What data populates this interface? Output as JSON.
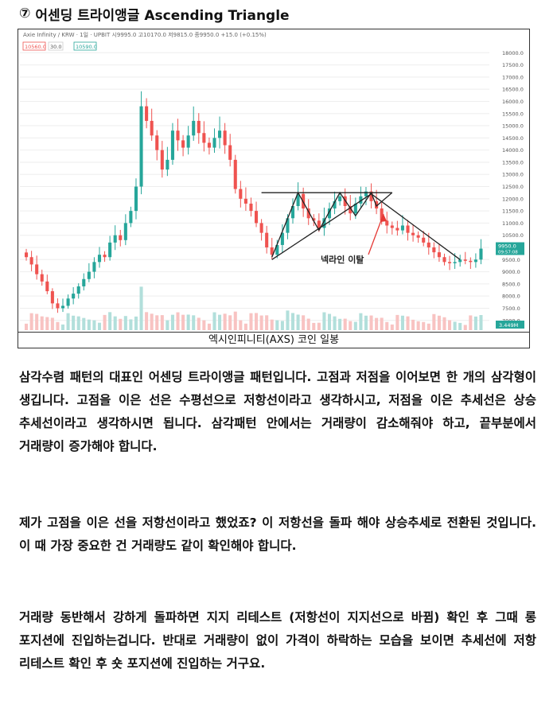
{
  "title": {
    "number_symbol": "⑦",
    "text": "어센딩 트라이앵글 Ascending Triangle"
  },
  "figure": {
    "caption": "엑시인피니티(AXS) 코인 일봉",
    "annotation": "넥라인 이탈",
    "header_text": "Axie Infinity / KRW · 1일 · UPBIT  시9995.0 고10170.0 저9815.0 종9950.0 +15.0 (+0.15%)",
    "badges": [
      "10560.0",
      "30.0",
      "10590.0"
    ],
    "price_tag": "9950.0",
    "price_tag_time": "09:57:08",
    "volume_tag": "3.449M",
    "colors": {
      "up": "#26a69a",
      "down": "#ef5350",
      "line": "#222222",
      "annotation": "#e53935"
    }
  },
  "chart_data": {
    "type": "candlestick",
    "title": "",
    "y_ticks": [
      7000,
      7500,
      8000,
      8500,
      9000,
      9500,
      10000,
      10500,
      11000,
      11500,
      12000,
      12500,
      13000,
      13500,
      14000,
      14500,
      15000,
      15500,
      16000,
      16500,
      17000,
      17500,
      18000
    ],
    "ylim": [
      6600,
      18500
    ],
    "close_series": [
      9600,
      9300,
      8900,
      8600,
      8200,
      7700,
      7500,
      7600,
      7900,
      8100,
      8400,
      8700,
      9000,
      9400,
      9700,
      9600,
      10200,
      10500,
      10300,
      11000,
      11500,
      12500,
      15800,
      15200,
      14600,
      14000,
      13200,
      13600,
      14800,
      14400,
      14100,
      14600,
      15200,
      14700,
      14300,
      14100,
      14500,
      14800,
      14200,
      13600,
      12400,
      12000,
      11800,
      11500,
      11000,
      10600,
      10000,
      9700,
      10100,
      10600,
      11200,
      11700,
      12200,
      11600,
      11200,
      11100,
      10800,
      11200,
      11600,
      11900,
      12100,
      11700,
      11400,
      11800,
      12100,
      12300,
      11900,
      11600,
      11100,
      10900,
      10800,
      10700,
      10900,
      10600,
      10500,
      10400,
      10200,
      10000,
      9800,
      9600,
      9400,
      9350,
      9400,
      9500,
      9450,
      9400,
      9500,
      9950
    ],
    "trendlines": {
      "resistance": 12250,
      "support_start": 9500,
      "support_end": 12200
    }
  },
  "paragraphs": [
    "삼각수렴 패턴의 대표인 어센딩 트라이앵글 패턴입니다. 고점과 저점을 이어보면 한 개의 삼각형이 생깁니다. 고점을 이은 선은 수평선으로 저항선이라고 생각하시고, 저점을 이은 추세선은 상승 추세선이라고 생각하시면 됩니다. 삼각패턴 안에서는 거래량이 감소해줘야 하고, 끝부분에서 거래량이 증가해야 합니다.",
    "제가 고점을 이은 선을 저항선이라고 했었죠? 이 저항선을 돌파 해야 상승추세로 전환된 것입니다. 이 때 가장 중요한 건 거래량도 같이 확인해야 합니다.",
    "거래량 동반해서 강하게 돌파하면 지지 리테스트 (저항선이 지지선으로 바뀜) 확인 후 그때 롱 포지션에 진입하는겁니다. 반대로 거래량이 없이 가격이 하락하는 모습을 보이면 추세선에 저항 리테스트 확인 후 숏 포지션에 진입하는 거구요."
  ]
}
